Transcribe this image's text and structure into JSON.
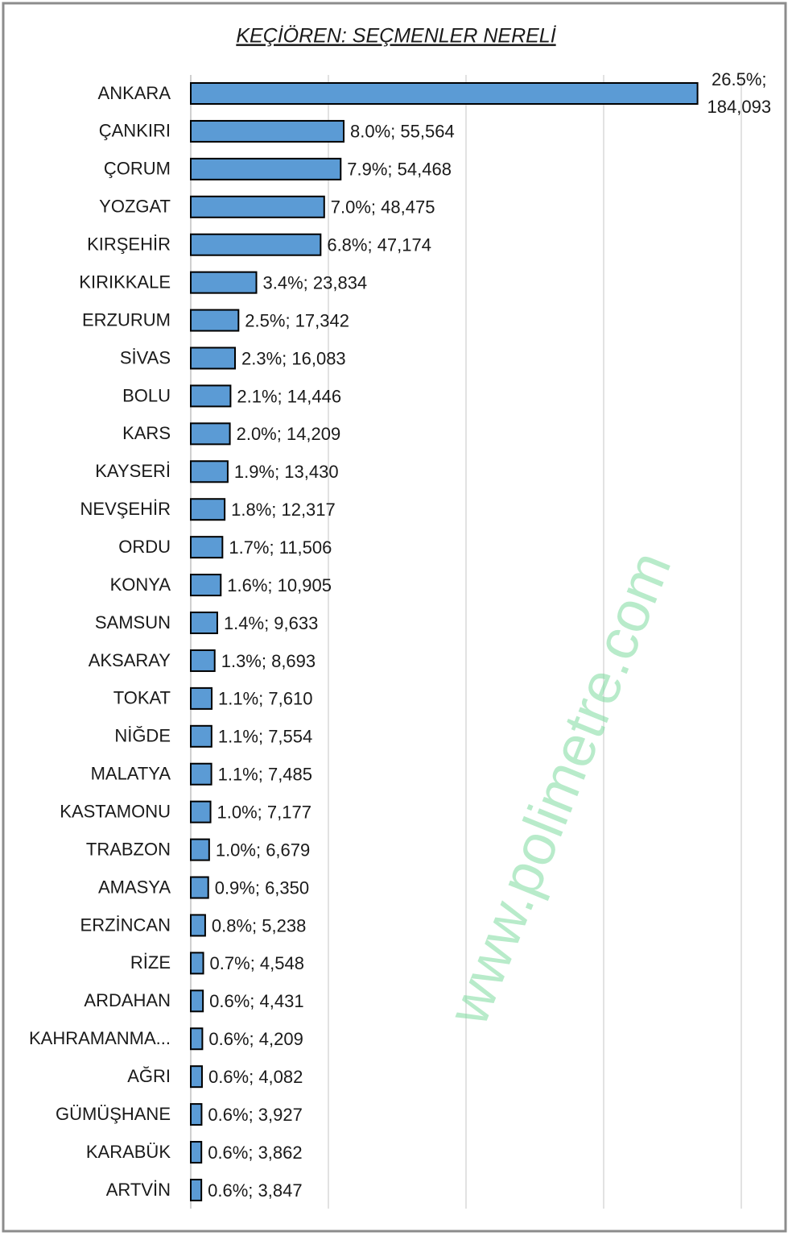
{
  "chart_data": {
    "type": "hbar",
    "title": "KEÇİÖREN: SEÇMENLER NERELİ",
    "watermark": "www.polimetre.com",
    "categories": [
      "ANKARA",
      "ÇANKIRI",
      "ÇORUM",
      "YOZGAT",
      "KIRŞEHİR",
      "KIRIKKALE",
      "ERZURUM",
      "SİVAS",
      "BOLU",
      "KARS",
      "KAYSERİ",
      "NEVŞEHİR",
      "ORDU",
      "KONYA",
      "SAMSUN",
      "AKSARAY",
      "TOKAT",
      "NİĞDE",
      "MALATYA",
      "KASTAMONU",
      "TRABZON",
      "AMASYA",
      "ERZİNCAN",
      "RİZE",
      "ARDAHAN",
      "KAHRAMANMA...",
      "AĞRI",
      "GÜMÜŞHANE",
      "KARABÜK",
      "ARTVİN"
    ],
    "values": [
      184093,
      55564,
      54468,
      48475,
      47174,
      23834,
      17342,
      16083,
      14446,
      14209,
      13430,
      12317,
      11506,
      10905,
      9633,
      8693,
      7610,
      7554,
      7485,
      7177,
      6679,
      6350,
      5238,
      4548,
      4431,
      4209,
      4082,
      3927,
      3862,
      3847
    ],
    "value_labels": [
      "26.5%; 184,093",
      "8.0%; 55,564",
      "7.9%; 54,468",
      "7.0%; 48,475",
      "6.8%; 47,174",
      "3.4%; 23,834",
      "2.5%; 17,342",
      "2.3%; 16,083",
      "2.1%; 14,446",
      "2.0%; 14,209",
      "1.9%; 13,430",
      "1.8%; 12,317",
      "1.7%; 11,506",
      "1.6%; 10,905",
      "1.4%; 9,633",
      "1.3%; 8,693",
      "1.1%; 7,610",
      "1.1%; 7,554",
      "1.1%; 7,485",
      "1.0%; 7,177",
      "1.0%; 6,679",
      "0.9%; 6,350",
      "0.8%; 5,238",
      "0.7%; 4,548",
      "0.6%; 4,431",
      "0.6%; 4,209",
      "0.6%; 4,082",
      "0.6%; 3,927",
      "0.6%; 3,862",
      "0.6%; 3,847"
    ],
    "color": "#5b9bd5",
    "xlim": [
      0,
      200000
    ],
    "xgrid": [
      50000,
      100000,
      150000,
      200000
    ],
    "grid": true
  }
}
